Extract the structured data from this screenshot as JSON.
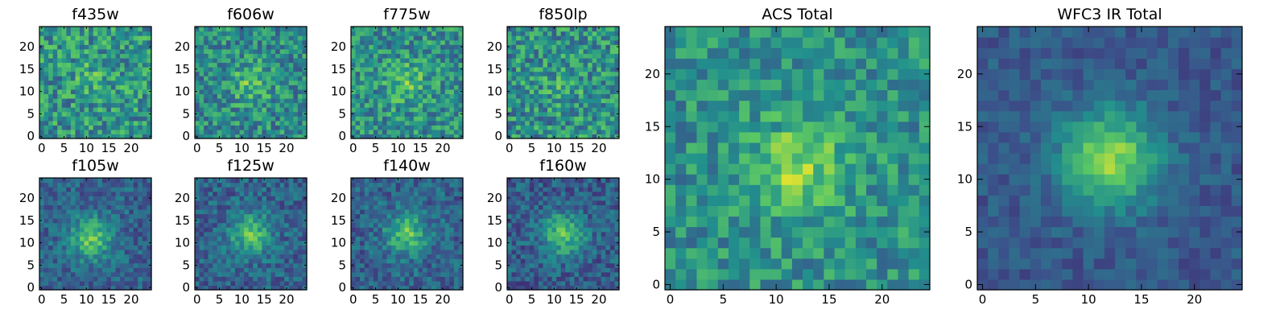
{
  "figure": {
    "background": "#ffffff"
  },
  "colormap": {
    "name": "viridis",
    "stops": [
      "#440154",
      "#3b528b",
      "#21908d",
      "#5dc963",
      "#fde725"
    ]
  },
  "chart_data": [
    {
      "type": "heatmap",
      "title": "f435w",
      "grid_size": 25,
      "xlim": [
        0,
        24
      ],
      "ylim": [
        0,
        24
      ],
      "xticks": [
        0,
        5,
        10,
        15,
        20
      ],
      "yticks": [
        0,
        5,
        10,
        15,
        20
      ],
      "source_peak": [
        12,
        14
      ],
      "source_strength": 0.1,
      "noise": 0.24,
      "baseline": 0.52,
      "seed": 11
    },
    {
      "type": "heatmap",
      "title": "f606w",
      "grid_size": 25,
      "xlim": [
        0,
        24
      ],
      "ylim": [
        0,
        24
      ],
      "xticks": [
        0,
        5,
        10,
        15,
        20
      ],
      "yticks": [
        0,
        5,
        10,
        15,
        20
      ],
      "source_peak": [
        12,
        12
      ],
      "source_strength": 0.22,
      "noise": 0.22,
      "baseline": 0.48,
      "seed": 23
    },
    {
      "type": "heatmap",
      "title": "f775w",
      "grid_size": 25,
      "xlim": [
        0,
        24
      ],
      "ylim": [
        0,
        24
      ],
      "xticks": [
        0,
        5,
        10,
        15,
        20
      ],
      "yticks": [
        0,
        5,
        10,
        15,
        20
      ],
      "source_peak": [
        12,
        12
      ],
      "source_strength": 0.2,
      "noise": 0.22,
      "baseline": 0.5,
      "seed": 37
    },
    {
      "type": "heatmap",
      "title": "f850lp",
      "grid_size": 25,
      "xlim": [
        0,
        24
      ],
      "ylim": [
        0,
        24
      ],
      "xticks": [
        0,
        5,
        10,
        15,
        20
      ],
      "yticks": [
        0,
        5,
        10,
        15,
        20
      ],
      "source_peak": [
        12,
        12
      ],
      "source_strength": 0.1,
      "noise": 0.24,
      "baseline": 0.5,
      "seed": 41
    },
    {
      "type": "heatmap",
      "title": "f105w",
      "grid_size": 25,
      "xlim": [
        0,
        24
      ],
      "ylim": [
        0,
        24
      ],
      "xticks": [
        0,
        5,
        10,
        15,
        20
      ],
      "yticks": [
        0,
        5,
        10,
        15,
        20
      ],
      "source_peak": [
        11,
        11
      ],
      "source_strength": 0.42,
      "noise": 0.14,
      "baseline": 0.32,
      "seed": 53
    },
    {
      "type": "heatmap",
      "title": "f125w",
      "grid_size": 25,
      "xlim": [
        0,
        24
      ],
      "ylim": [
        0,
        24
      ],
      "xticks": [
        0,
        5,
        10,
        15,
        20
      ],
      "yticks": [
        0,
        5,
        10,
        15,
        20
      ],
      "source_peak": [
        12,
        12
      ],
      "source_strength": 0.4,
      "noise": 0.15,
      "baseline": 0.32,
      "seed": 67
    },
    {
      "type": "heatmap",
      "title": "f140w",
      "grid_size": 25,
      "xlim": [
        0,
        24
      ],
      "ylim": [
        0,
        24
      ],
      "xticks": [
        0,
        5,
        10,
        15,
        20
      ],
      "yticks": [
        0,
        5,
        10,
        15,
        20
      ],
      "source_peak": [
        12,
        12
      ],
      "source_strength": 0.4,
      "noise": 0.15,
      "baseline": 0.32,
      "seed": 79
    },
    {
      "type": "heatmap",
      "title": "f160w",
      "grid_size": 25,
      "xlim": [
        0,
        24
      ],
      "ylim": [
        0,
        24
      ],
      "xticks": [
        0,
        5,
        10,
        15,
        20
      ],
      "yticks": [
        0,
        5,
        10,
        15,
        20
      ],
      "source_peak": [
        12,
        12
      ],
      "source_strength": 0.42,
      "noise": 0.15,
      "baseline": 0.3,
      "seed": 97
    },
    {
      "type": "heatmap",
      "title": "ACS Total",
      "grid_size": 25,
      "xlim": [
        0,
        24
      ],
      "ylim": [
        0,
        24
      ],
      "xticks": [
        0,
        5,
        10,
        15,
        20
      ],
      "yticks": [
        0,
        5,
        10,
        15,
        20
      ],
      "source_peak": [
        12,
        11
      ],
      "source_strength": 0.3,
      "noise": 0.18,
      "baseline": 0.5,
      "seed": 113
    },
    {
      "type": "heatmap",
      "title": "WFC3 IR Total",
      "grid_size": 25,
      "xlim": [
        0,
        24
      ],
      "ylim": [
        0,
        24
      ],
      "xticks": [
        0,
        5,
        10,
        15,
        20
      ],
      "yticks": [
        0,
        5,
        10,
        15,
        20
      ],
      "source_peak": [
        12,
        12
      ],
      "source_strength": 0.55,
      "noise": 0.09,
      "baseline": 0.28,
      "seed": 131
    }
  ]
}
